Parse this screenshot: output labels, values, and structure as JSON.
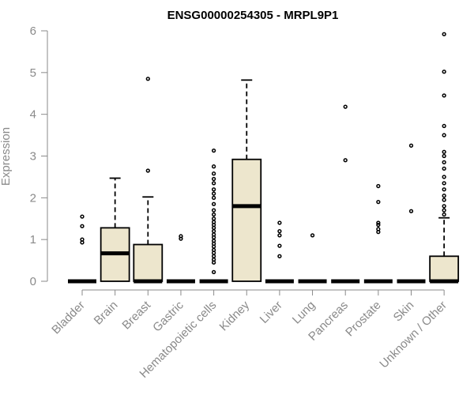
{
  "chart_data": {
    "type": "box",
    "title": "ENSG00000254305 - MRPL9P1",
    "xlabel": "",
    "ylabel": "Expression",
    "ylim": [
      0,
      6
    ],
    "yticks": [
      0,
      1,
      2,
      3,
      4,
      5,
      6
    ],
    "grid": false,
    "legend": "none",
    "colors": {
      "box_fill": "#ede6cd",
      "box_stroke": "#000000",
      "axis": "#8a8a8a",
      "text": "#8a8a8a",
      "title": "#000000"
    },
    "categories": [
      "Bladder",
      "Brain",
      "Breast",
      "Gastric",
      "Hematopoietic cells",
      "Kidney",
      "Liver",
      "Lung",
      "Pancreas",
      "Prostate",
      "Skin",
      "Unknown / Other"
    ],
    "boxes": [
      {
        "category": "Bladder",
        "q1": 0,
        "median": 0,
        "q3": 0,
        "whisker_low": 0,
        "whisker_high": 0,
        "outliers": [
          0.93,
          1.0,
          1.32,
          1.55
        ]
      },
      {
        "category": "Brain",
        "q1": 0,
        "median": 0.67,
        "q3": 1.28,
        "whisker_low": 0,
        "whisker_high": 2.47,
        "outliers": []
      },
      {
        "category": "Breast",
        "q1": 0,
        "median": 0,
        "q3": 0.88,
        "whisker_low": 0,
        "whisker_high": 2.02,
        "outliers": [
          2.65,
          4.85
        ]
      },
      {
        "category": "Gastric",
        "q1": 0,
        "median": 0,
        "q3": 0,
        "whisker_low": 0,
        "whisker_high": 0,
        "outliers": [
          1.02,
          1.08
        ]
      },
      {
        "category": "Hematopoietic cells",
        "q1": 0,
        "median": 0,
        "q3": 0,
        "whisker_low": 0,
        "whisker_high": 0,
        "outliers": [
          0.22,
          0.45,
          0.52,
          0.6,
          0.68,
          0.75,
          0.83,
          0.9,
          0.97,
          1.05,
          1.12,
          1.2,
          1.28,
          1.35,
          1.42,
          1.5,
          1.6,
          1.7,
          1.85,
          2.0,
          2.1,
          2.2,
          2.35,
          2.45,
          2.58,
          2.75,
          3.13
        ]
      },
      {
        "category": "Kidney",
        "q1": 0,
        "median": 1.8,
        "q3": 2.92,
        "whisker_low": 0,
        "whisker_high": 4.82,
        "outliers": []
      },
      {
        "category": "Liver",
        "q1": 0,
        "median": 0,
        "q3": 0,
        "whisker_low": 0,
        "whisker_high": 0,
        "outliers": [
          0.6,
          0.85,
          1.1,
          1.2,
          1.4
        ]
      },
      {
        "category": "Lung",
        "q1": 0,
        "median": 0,
        "q3": 0,
        "whisker_low": 0,
        "whisker_high": 0,
        "outliers": [
          1.1
        ]
      },
      {
        "category": "Pancreas",
        "q1": 0,
        "median": 0,
        "q3": 0,
        "whisker_low": 0,
        "whisker_high": 0,
        "outliers": [
          2.9,
          4.18
        ]
      },
      {
        "category": "Prostate",
        "q1": 0,
        "median": 0,
        "q3": 0,
        "whisker_low": 0,
        "whisker_high": 0,
        "outliers": [
          1.18,
          1.25,
          1.35,
          1.4,
          1.9,
          2.28
        ]
      },
      {
        "category": "Skin",
        "q1": 0,
        "median": 0,
        "q3": 0,
        "whisker_low": 0,
        "whisker_high": 0,
        "outliers": [
          1.68,
          3.25
        ]
      },
      {
        "category": "Unknown / Other",
        "q1": 0,
        "median": 0,
        "q3": 0.6,
        "whisker_low": 0,
        "whisker_high": 1.52,
        "outliers": [
          1.6,
          1.7,
          1.8,
          1.95,
          2.05,
          2.2,
          2.35,
          2.5,
          2.7,
          2.85,
          3.0,
          3.1,
          3.5,
          3.72,
          4.45,
          5.02,
          5.92
        ]
      }
    ]
  }
}
